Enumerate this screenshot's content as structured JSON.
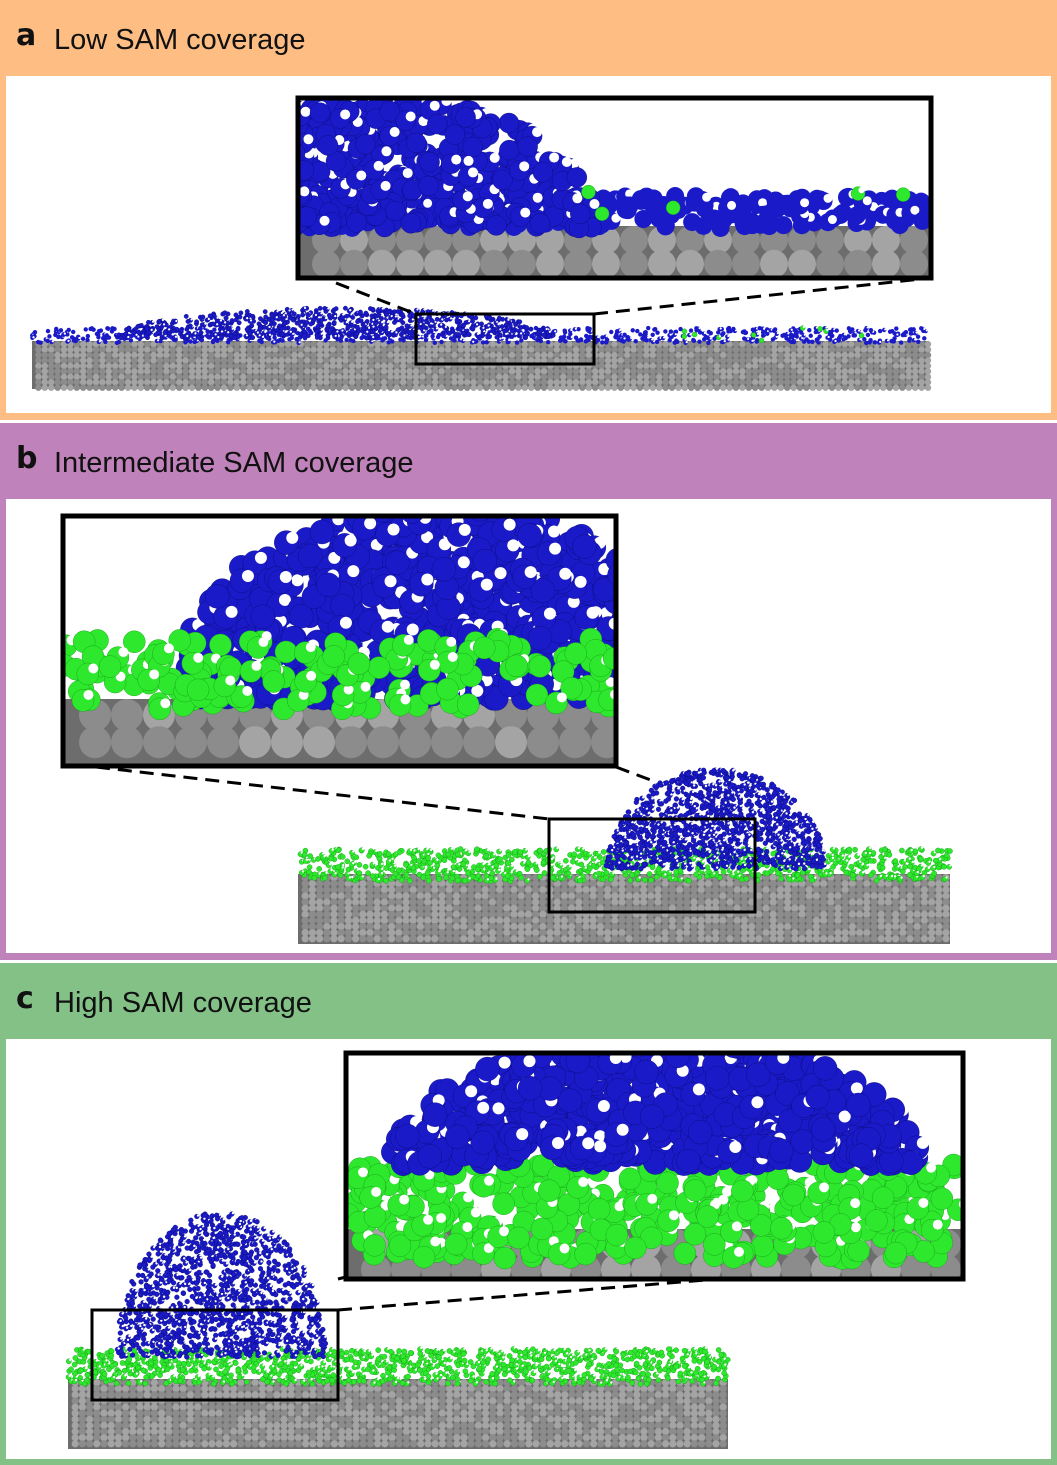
{
  "colors": {
    "panel_a": "#fdbd83",
    "panel_b": "#c082ba",
    "panel_c": "#84c187",
    "substrate": "#8a8a8a",
    "liquid": "#1a1ac8",
    "hydrogen": "#ffffff",
    "sam": "#2ee82e"
  },
  "panels": [
    {
      "letter": "a",
      "title": "Low SAM coverage"
    },
    {
      "letter": "b",
      "title": "Intermediate SAM coverage"
    },
    {
      "letter": "c",
      "title": "High SAM coverage"
    }
  ]
}
